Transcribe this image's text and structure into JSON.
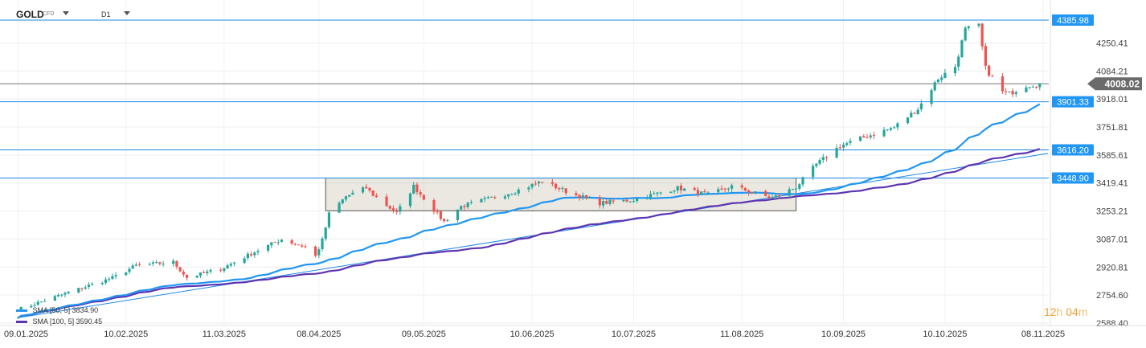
{
  "header": {
    "symbol": "GOLD",
    "symbol_tag": "CFD",
    "timeframe": "D1"
  },
  "timer": {
    "hours": "12",
    "h_unit": "h",
    "minutes": "04",
    "m_unit": "m"
  },
  "indicators": [
    {
      "label": "SMA",
      "params": "[50, 5]",
      "value": "3834.90",
      "color": "#2196f3"
    },
    {
      "label": "SMA",
      "params": "[100, 5]",
      "value": "3590.45",
      "color": "#5e35b1"
    }
  ],
  "colors": {
    "up": "#26a69a",
    "down": "#ef5350",
    "level_line": "#2196f3",
    "price_badge": "#6b6b6b",
    "timer": "#f0a030"
  },
  "chart_data": {
    "type": "candlestick",
    "x_range": [
      "2025-01-09",
      "2025-11-08"
    ],
    "ylim": [
      2588.4,
      4385.98
    ],
    "grid": true,
    "y_ticks": [
      4250.41,
      4084.21,
      3918.01,
      3751.81,
      3585.61,
      3419.41,
      3253.21,
      3087.01,
      2920.81,
      2754.6,
      2588.4
    ],
    "y_tick_labels": [
      "4250.41",
      "4084.21",
      "3918.01",
      "3751.81",
      "3585.61",
      "3419.41",
      "3253.21",
      "3087.01",
      "2920.81",
      "2754.60",
      "2588.40"
    ],
    "x_tick_labels": [
      "09.01.2025",
      "10.02.2025",
      "11.03.2025",
      "08.04.2025",
      "09.05.2025",
      "10.06.2025",
      "10.07.2025",
      "11.08.2025",
      "10.09.2025",
      "10.10.2025",
      "08.11.2025"
    ],
    "x_tick_dates": [
      "2025-01-09",
      "2025-02-10",
      "2025-03-11",
      "2025-04-08",
      "2025-05-09",
      "2025-06-10",
      "2025-07-10",
      "2025-08-11",
      "2025-09-10",
      "2025-10-10",
      "2025-11-08"
    ],
    "horizontal_levels": [
      {
        "value": 4385.98,
        "label": "4385.98"
      },
      {
        "value": 3901.33,
        "label": "3901.33"
      },
      {
        "value": 3616.2,
        "label": "3616.20"
      },
      {
        "value": 3448.9,
        "label": "3448.90"
      }
    ],
    "current_price": {
      "value": 4008.02,
      "label": "4008.02"
    },
    "consolidation_box": {
      "from": "2025-04-10",
      "to": "2025-08-27",
      "high": 3448.9,
      "low": 3255.0
    },
    "trend_line": {
      "from_date": "2025-01-09",
      "from_value": 2620,
      "to_date": "2025-11-08",
      "to_value": 3595
    },
    "close_anchors": [
      [
        "2025-01-09",
        2668
      ],
      [
        "2025-01-24",
        2770
      ],
      [
        "2025-02-06",
        2857
      ],
      [
        "2025-02-13",
        2930
      ],
      [
        "2025-02-24",
        2950
      ],
      [
        "2025-02-28",
        2858
      ],
      [
        "2025-03-10",
        2910
      ],
      [
        "2025-03-21",
        3020
      ],
      [
        "2025-03-28",
        3085
      ],
      [
        "2025-04-04",
        3040
      ],
      [
        "2025-04-07",
        2985
      ],
      [
        "2025-04-09",
        3080
      ],
      [
        "2025-04-11",
        3235
      ],
      [
        "2025-04-16",
        3340
      ],
      [
        "2025-04-22",
        3390
      ],
      [
        "2025-04-24",
        3350
      ],
      [
        "2025-05-01",
        3240
      ],
      [
        "2025-05-06",
        3400
      ],
      [
        "2025-05-15",
        3190
      ],
      [
        "2025-05-20",
        3280
      ],
      [
        "2025-06-05",
        3370
      ],
      [
        "2025-06-13",
        3430
      ],
      [
        "2025-06-20",
        3370
      ],
      [
        "2025-06-30",
        3300
      ],
      [
        "2025-07-10",
        3320
      ],
      [
        "2025-07-23",
        3390
      ],
      [
        "2025-08-01",
        3350
      ],
      [
        "2025-08-08",
        3400
      ],
      [
        "2025-08-20",
        3330
      ],
      [
        "2025-08-27",
        3395
      ],
      [
        "2025-09-02",
        3530
      ],
      [
        "2025-09-09",
        3640
      ],
      [
        "2025-09-16",
        3690
      ],
      [
        "2025-09-25",
        3750
      ],
      [
        "2025-10-02",
        3860
      ],
      [
        "2025-10-08",
        4040
      ],
      [
        "2025-10-13",
        4110
      ],
      [
        "2025-10-16",
        4330
      ],
      [
        "2025-10-20",
        4350
      ],
      [
        "2025-10-22",
        4100
      ],
      [
        "2025-10-27",
        3960
      ],
      [
        "2025-10-29",
        3950
      ],
      [
        "2025-11-03",
        4000
      ],
      [
        "2025-11-07",
        4008
      ]
    ]
  }
}
